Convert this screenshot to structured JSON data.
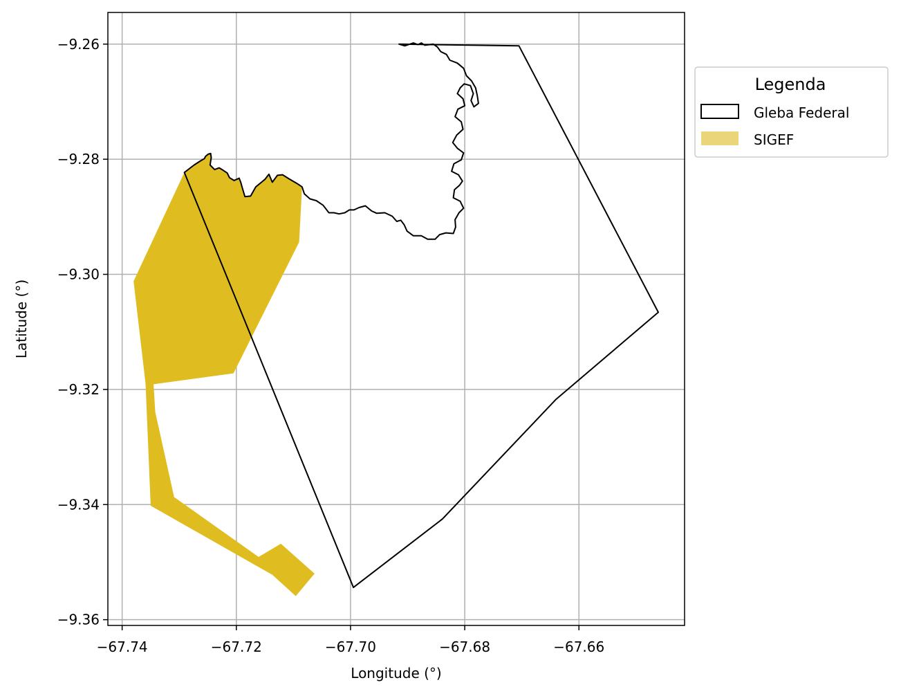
{
  "chart_data": {
    "type": "map",
    "xlabel": "Longitude (°)",
    "ylabel": "Latitude (°)",
    "xlim": [
      -67.7425,
      -67.6415
    ],
    "ylim": [
      -9.361,
      -9.2545
    ],
    "grid": true,
    "x_ticks": [
      -67.74,
      -67.72,
      -67.7,
      -67.68,
      -67.66
    ],
    "x_tick_labels": [
      "−67.74",
      "−67.72",
      "−67.70",
      "−67.68",
      "−67.66"
    ],
    "y_ticks": [
      -9.26,
      -9.28,
      -9.3,
      -9.32,
      -9.34,
      -9.36
    ],
    "y_tick_labels": [
      "−9.26",
      "−9.28",
      "−9.30",
      "−9.32",
      "−9.34",
      "−9.36"
    ],
    "legend": {
      "title": "Legenda",
      "placement": "outside-upper-right",
      "entries": [
        {
          "label": "Gleba Federal",
          "style": "outline",
          "edge_color": "#000000",
          "face_color": "#ffffff"
        },
        {
          "label": "SIGEF",
          "style": "fill",
          "face_color": "#ebd57a"
        }
      ]
    },
    "layers": [
      {
        "name": "SIGEF",
        "color": "#dfbd20",
        "coordinates": [
          [
            -67.7291,
            -9.2823
          ],
          [
            -67.7274,
            -9.281
          ],
          [
            -67.7263,
            -9.2803
          ],
          [
            -67.7256,
            -9.2799
          ],
          [
            -67.7254,
            -9.2795
          ],
          [
            -67.7249,
            -9.2791
          ],
          [
            -67.7245,
            -9.279
          ],
          [
            -67.7244,
            -9.2797
          ],
          [
            -67.7246,
            -9.281
          ],
          [
            -67.7238,
            -9.2818
          ],
          [
            -67.723,
            -9.2815
          ],
          [
            -67.7225,
            -9.2818
          ],
          [
            -67.7216,
            -9.2824
          ],
          [
            -67.7212,
            -9.2832
          ],
          [
            -67.7204,
            -9.2837
          ],
          [
            -67.7195,
            -9.2833
          ],
          [
            -67.7192,
            -9.2841
          ],
          [
            -67.719,
            -9.2848
          ],
          [
            -67.7185,
            -9.2865
          ],
          [
            -67.7175,
            -9.2864
          ],
          [
            -67.7166,
            -9.2848
          ],
          [
            -67.715,
            -9.2835
          ],
          [
            -67.7143,
            -9.2826
          ],
          [
            -67.7137,
            -9.284
          ],
          [
            -67.7128,
            -9.2828
          ],
          [
            -67.7119,
            -9.2827
          ],
          [
            -67.7108,
            -9.2834
          ],
          [
            -67.7094,
            -9.2842
          ],
          [
            -67.7085,
            -9.2848
          ],
          [
            -67.709,
            -9.2944
          ],
          [
            -67.7205,
            -9.3172
          ],
          [
            -67.7345,
            -9.3191
          ],
          [
            -67.7342,
            -9.3239
          ],
          [
            -67.7309,
            -9.3387
          ],
          [
            -67.7161,
            -9.3491
          ],
          [
            -67.7122,
            -9.3468
          ],
          [
            -67.7063,
            -9.352
          ],
          [
            -67.7096,
            -9.3559
          ],
          [
            -67.7137,
            -9.3522
          ],
          [
            -67.735,
            -9.3402
          ],
          [
            -67.7359,
            -9.319
          ],
          [
            -67.738,
            -9.3012
          ]
        ]
      },
      {
        "name": "Gleba Federal",
        "color": "#000000",
        "coordinates": [
          [
            -67.7291,
            -9.2823
          ],
          [
            -67.7274,
            -9.281
          ],
          [
            -67.7263,
            -9.2803
          ],
          [
            -67.7256,
            -9.2799
          ],
          [
            -67.7254,
            -9.2795
          ],
          [
            -67.7249,
            -9.2791
          ],
          [
            -67.7245,
            -9.279
          ],
          [
            -67.7244,
            -9.2797
          ],
          [
            -67.7246,
            -9.281
          ],
          [
            -67.7238,
            -9.2818
          ],
          [
            -67.723,
            -9.2815
          ],
          [
            -67.7225,
            -9.2818
          ],
          [
            -67.7216,
            -9.2824
          ],
          [
            -67.7212,
            -9.2832
          ],
          [
            -67.7204,
            -9.2837
          ],
          [
            -67.7195,
            -9.2833
          ],
          [
            -67.7192,
            -9.2841
          ],
          [
            -67.719,
            -9.2848
          ],
          [
            -67.7185,
            -9.2865
          ],
          [
            -67.7175,
            -9.2864
          ],
          [
            -67.7166,
            -9.2848
          ],
          [
            -67.715,
            -9.2835
          ],
          [
            -67.7143,
            -9.2826
          ],
          [
            -67.7137,
            -9.284
          ],
          [
            -67.7128,
            -9.2828
          ],
          [
            -67.7119,
            -9.2827
          ],
          [
            -67.7108,
            -9.2834
          ],
          [
            -67.7094,
            -9.2842
          ],
          [
            -67.7085,
            -9.2848
          ],
          [
            -67.7081,
            -9.286
          ],
          [
            -67.7071,
            -9.2869
          ],
          [
            -67.706,
            -9.2872
          ],
          [
            -67.7048,
            -9.288
          ],
          [
            -67.7038,
            -9.2893
          ],
          [
            -67.7029,
            -9.2893
          ],
          [
            -67.702,
            -9.2895
          ],
          [
            -67.701,
            -9.2893
          ],
          [
            -67.7002,
            -9.2888
          ],
          [
            -67.6994,
            -9.2888
          ],
          [
            -67.6985,
            -9.2884
          ],
          [
            -67.6974,
            -9.2881
          ],
          [
            -67.6963,
            -9.289
          ],
          [
            -67.6954,
            -9.2894
          ],
          [
            -67.694,
            -9.2893
          ],
          [
            -67.6927,
            -9.2899
          ],
          [
            -67.6919,
            -9.2908
          ],
          [
            -67.6912,
            -9.2906
          ],
          [
            -67.6906,
            -9.2914
          ],
          [
            -67.6901,
            -9.2925
          ],
          [
            -67.689,
            -9.2933
          ],
          [
            -67.6876,
            -9.2933
          ],
          [
            -67.6865,
            -9.2939
          ],
          [
            -67.6852,
            -9.2939
          ],
          [
            -67.6844,
            -9.2931
          ],
          [
            -67.6833,
            -9.2928
          ],
          [
            -67.682,
            -9.2929
          ],
          [
            -67.6816,
            -9.2918
          ],
          [
            -67.6817,
            -9.2905
          ],
          [
            -67.681,
            -9.2893
          ],
          [
            -67.6802,
            -9.2885
          ],
          [
            -67.6808,
            -9.2873
          ],
          [
            -67.682,
            -9.2867
          ],
          [
            -67.6818,
            -9.2853
          ],
          [
            -67.6809,
            -9.2845
          ],
          [
            -67.6804,
            -9.2838
          ],
          [
            -67.6811,
            -9.2827
          ],
          [
            -67.6823,
            -9.2821
          ],
          [
            -67.6819,
            -9.2808
          ],
          [
            -67.6806,
            -9.2801
          ],
          [
            -67.6802,
            -9.2789
          ],
          [
            -67.6813,
            -9.2781
          ],
          [
            -67.6821,
            -9.2771
          ],
          [
            -67.6814,
            -9.2758
          ],
          [
            -67.6803,
            -9.2748
          ],
          [
            -67.6806,
            -9.2735
          ],
          [
            -67.6817,
            -9.2726
          ],
          [
            -67.6812,
            -9.2713
          ],
          [
            -67.68,
            -9.2707
          ],
          [
            -67.6803,
            -9.2695
          ],
          [
            -67.6813,
            -9.2686
          ],
          [
            -67.6808,
            -9.2676
          ],
          [
            -67.6801,
            -9.2669
          ],
          [
            -67.679,
            -9.2672
          ],
          [
            -67.6785,
            -9.2686
          ],
          [
            -67.6789,
            -9.2698
          ],
          [
            -67.6784,
            -9.2709
          ],
          [
            -67.6776,
            -9.2703
          ],
          [
            -67.6778,
            -9.269
          ],
          [
            -67.6781,
            -9.2676
          ],
          [
            -67.6788,
            -9.2664
          ],
          [
            -67.6797,
            -9.2655
          ],
          [
            -67.6802,
            -9.2642
          ],
          [
            -67.6813,
            -9.2633
          ],
          [
            -67.6826,
            -9.2628
          ],
          [
            -67.6832,
            -9.2618
          ],
          [
            -67.6842,
            -9.2613
          ],
          [
            -67.6848,
            -9.2605
          ],
          [
            -67.6855,
            -9.26
          ],
          [
            -67.687,
            -9.2602
          ],
          [
            -67.6876,
            -9.2598
          ],
          [
            -67.6882,
            -9.2601
          ],
          [
            -67.689,
            -9.2598
          ],
          [
            -67.6905,
            -9.2603
          ],
          [
            -67.6915,
            -9.26
          ],
          [
            -67.6705,
            -9.2603
          ],
          [
            -67.6461,
            -9.3066
          ],
          [
            -67.664,
            -9.3217
          ],
          [
            -67.6839,
            -9.3425
          ],
          [
            -67.6995,
            -9.3544
          ]
        ]
      }
    ]
  }
}
